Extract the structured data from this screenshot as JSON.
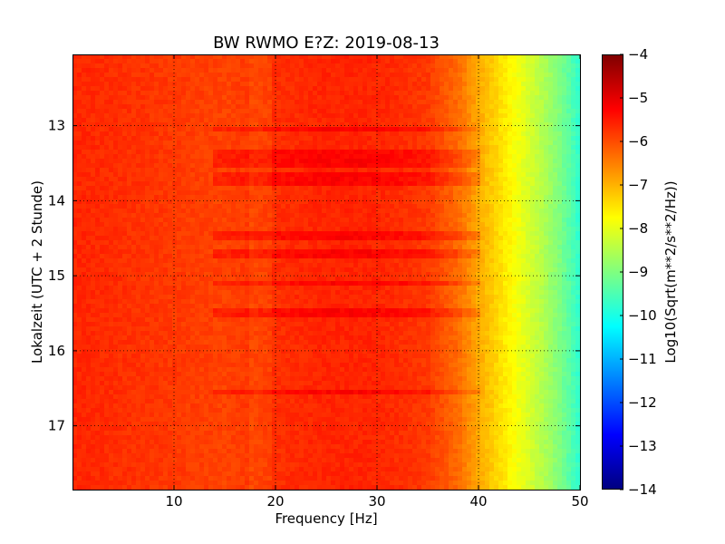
{
  "chart_data": {
    "type": "heatmap",
    "title": "BW RWMO E?Z: 2019-08-13",
    "xlabel": "Frequency [Hz]",
    "ylabel": "Lokalzeit (UTC + 2 Stunde)",
    "xlim": [
      0,
      50
    ],
    "ylim": [
      12.05,
      17.85
    ],
    "y_inverted": true,
    "x_ticks": [
      10,
      20,
      30,
      40,
      50
    ],
    "y_ticks": [
      13,
      14,
      15,
      16,
      17
    ],
    "grid": true,
    "grid_style": "dotted",
    "colormap": "jet",
    "colorbar": {
      "label": "Log10(Sqrt(m**2/s**2/Hz))",
      "range": [
        -14,
        -4
      ],
      "ticks": [
        -4,
        -5,
        -6,
        -7,
        -8,
        -9,
        -10,
        -11,
        -12,
        -13,
        -14
      ]
    },
    "spectral_profile": {
      "note_values_are_log10_amplitude": true,
      "frequency_hz": [
        0,
        5,
        10,
        15,
        20,
        25,
        30,
        35,
        38,
        40,
        42,
        44,
        46,
        48,
        50
      ],
      "log10_level": [
        -5.6,
        -5.7,
        -5.8,
        -5.9,
        -5.7,
        -5.6,
        -5.6,
        -5.8,
        -6.3,
        -6.9,
        -7.4,
        -7.9,
        -8.4,
        -9.0,
        -9.8
      ]
    },
    "enhanced_bands_hours": [
      13.05,
      13.4,
      13.5,
      13.7,
      13.75,
      14.45,
      14.7,
      15.1,
      15.5,
      16.55
    ]
  }
}
